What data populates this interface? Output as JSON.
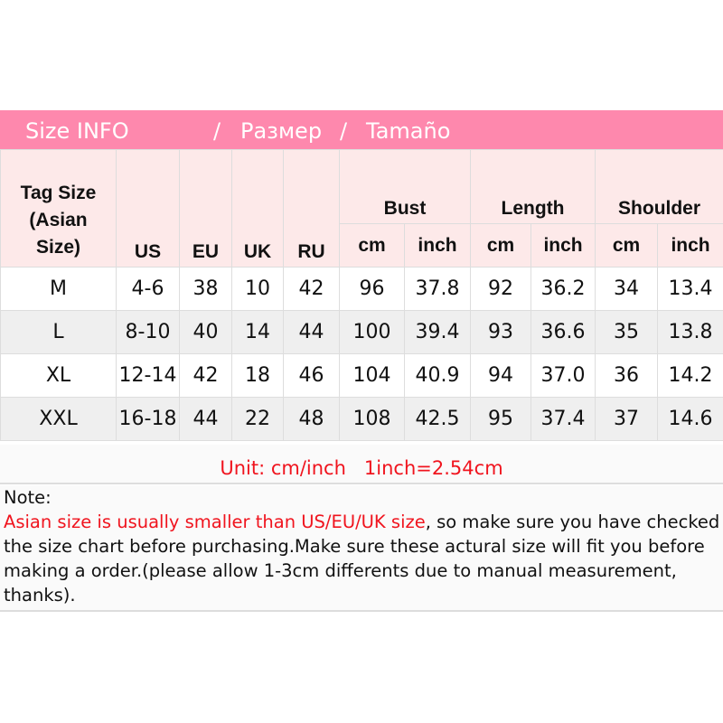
{
  "banner": {
    "en": "Size INFO",
    "sep1": "/",
    "ru": "Размер",
    "sep2": "/",
    "es": "Tamaño"
  },
  "header": {
    "tag": [
      "Tag Size",
      "(Asian",
      "Size)"
    ],
    "columns": [
      "US",
      "EU",
      "UK",
      "RU"
    ],
    "groups": [
      "Bust",
      "Length",
      "Shoulder"
    ],
    "sub": [
      "cm",
      "inch"
    ]
  },
  "rows": [
    [
      "M",
      "4-6",
      "38",
      "10",
      "42",
      "96",
      "37.8",
      "92",
      "36.2",
      "34",
      "13.4"
    ],
    [
      "L",
      "8-10",
      "40",
      "14",
      "44",
      "100",
      "39.4",
      "93",
      "36.6",
      "35",
      "13.8"
    ],
    [
      "XL",
      "12-14",
      "42",
      "18",
      "46",
      "104",
      "40.9",
      "94",
      "37.0",
      "36",
      "14.2"
    ],
    [
      "XXL",
      "16-18",
      "44",
      "22",
      "48",
      "108",
      "42.5",
      "95",
      "37.4",
      "37",
      "14.6"
    ]
  ],
  "unit": "Unit: cm/inch   1inch=2.54cm",
  "note": {
    "title": "Note:",
    "highlight": "Asian size is usually smaller than US/EU/UK size",
    "body": ", so make sure you have checked the size chart before purchasing.Make sure these actural size will fit you before making a order.(please allow 1-3cm differents due to manual measurement, thanks)."
  },
  "colors": {
    "banner": "#fe88ad",
    "header": "#fde9e9",
    "alt_row": "#efefef",
    "highlight": "#f0141e"
  }
}
